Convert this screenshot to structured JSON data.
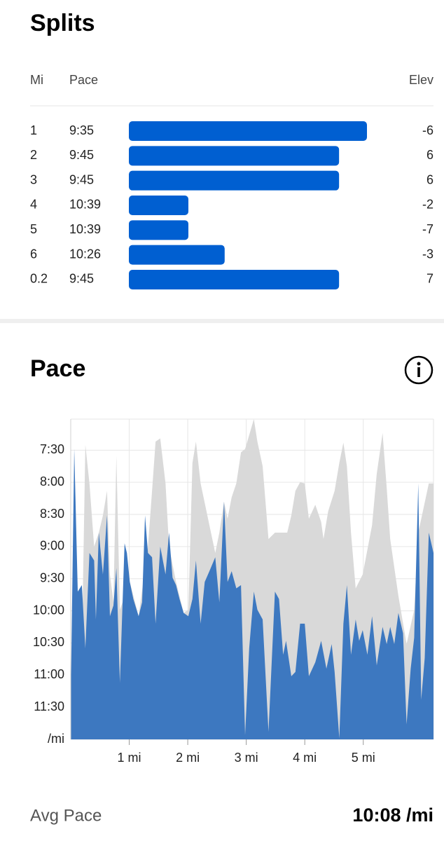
{
  "splits": {
    "title": "Splits",
    "headers": [
      "Mi",
      "Pace",
      "Elev"
    ],
    "rows": [
      {
        "mi": "1",
        "pace": "9:35",
        "elev": -6
      },
      {
        "mi": "2",
        "pace": "9:45",
        "elev": 6
      },
      {
        "mi": "3",
        "pace": "9:45",
        "elev": 6
      },
      {
        "mi": "4",
        "pace": "10:39",
        "elev": -2
      },
      {
        "mi": "5",
        "pace": "10:39",
        "elev": -7
      },
      {
        "mi": "6",
        "pace": "10:26",
        "elev": -3
      },
      {
        "mi": "0.2",
        "pace": "9:45",
        "elev": 7
      }
    ],
    "bar_color": "#005fd1"
  },
  "pace_section": {
    "title": "Pace"
  },
  "chart_data": {
    "type": "area",
    "xlim": [
      0,
      6.2
    ],
    "xticks": [
      {
        "value": 1,
        "label": "1 mi"
      },
      {
        "value": 2,
        "label": "2 mi"
      },
      {
        "value": 3,
        "label": "3 mi"
      },
      {
        "value": 4,
        "label": "4 mi"
      },
      {
        "value": 5,
        "label": "5 mi"
      }
    ],
    "ylim": [
      720,
      421
    ],
    "yticks": [
      {
        "value": 450,
        "label": "7:30"
      },
      {
        "value": 480,
        "label": "8:00"
      },
      {
        "value": 510,
        "label": "8:30"
      },
      {
        "value": 540,
        "label": "9:00"
      },
      {
        "value": 570,
        "label": "9:30"
      },
      {
        "value": 600,
        "label": "10:00"
      },
      {
        "value": 630,
        "label": "10:30"
      },
      {
        "value": 660,
        "label": "11:00"
      },
      {
        "value": 690,
        "label": "11:30"
      },
      {
        "value": 720,
        "label": "/mi"
      }
    ],
    "grid": true,
    "series": [
      {
        "color": "#d9d9d9",
        "x": [
          0.06,
          0.13,
          0.2,
          0.25,
          0.32,
          0.4,
          0.48,
          0.55,
          0.62,
          0.67,
          0.73,
          0.78,
          0.84,
          1.01,
          1.16,
          1.32,
          1.39,
          1.45,
          1.53,
          1.62,
          1.68,
          1.8,
          1.93,
          2.01,
          2.08,
          2.14,
          2.22,
          2.37,
          2.47,
          2.54,
          2.62,
          2.68,
          2.75,
          2.83,
          2.91,
          2.98,
          3.13,
          3.19,
          3.28,
          3.38,
          3.49,
          3.7,
          3.77,
          3.84,
          3.92,
          4.0,
          4.07,
          4.18,
          4.28,
          4.32,
          4.4,
          4.51,
          4.59,
          4.66,
          4.72,
          4.79,
          4.87,
          4.99,
          5.15,
          5.23,
          5.33,
          5.4,
          5.46,
          5.6,
          5.74,
          5.87,
          5.94,
          6.12,
          6.2
        ],
        "values": [
          449,
          618,
          605,
          445,
          481,
          540,
          527,
          511,
          488,
          566,
          592,
          455,
          599,
          573,
          605,
          540,
          488,
          442,
          439,
          481,
          540,
          573,
          602,
          599,
          462,
          442,
          481,
          520,
          546,
          527,
          498,
          514,
          494,
          481,
          452,
          449,
          421,
          442,
          465,
          533,
          527,
          527,
          511,
          488,
          480,
          481,
          514,
          501,
          517,
          533,
          507,
          488,
          462,
          443,
          465,
          527,
          579,
          566,
          520,
          472,
          434,
          485,
          533,
          586,
          631,
          599,
          527,
          481,
          481
        ]
      },
      {
        "color": "#3d78c0",
        "x": [
          0.0,
          0.06,
          0.12,
          0.19,
          0.25,
          0.32,
          0.4,
          0.43,
          0.48,
          0.55,
          0.62,
          0.67,
          0.73,
          0.78,
          0.84,
          0.92,
          0.96,
          1.01,
          1.07,
          1.16,
          1.22,
          1.27,
          1.32,
          1.39,
          1.45,
          1.53,
          1.62,
          1.68,
          1.74,
          1.8,
          1.86,
          1.93,
          2.01,
          2.08,
          2.14,
          2.22,
          2.29,
          2.37,
          2.47,
          2.54,
          2.62,
          2.68,
          2.75,
          2.83,
          2.91,
          2.98,
          3.05,
          3.13,
          3.19,
          3.28,
          3.38,
          3.49,
          3.56,
          3.63,
          3.68,
          3.77,
          3.84,
          3.92,
          4.0,
          4.07,
          4.18,
          4.28,
          4.37,
          4.46,
          4.51,
          4.59,
          4.66,
          4.72,
          4.79,
          4.87,
          4.93,
          4.99,
          5.07,
          5.15,
          5.23,
          5.33,
          5.4,
          5.46,
          5.53,
          5.6,
          5.68,
          5.74,
          5.81,
          5.87,
          5.94,
          5.99,
          6.05,
          6.12,
          6.2
        ],
        "values": [
          683,
          449,
          582,
          576,
          635,
          546,
          553,
          608,
          527,
          566,
          511,
          605,
          595,
          560,
          667,
          537,
          546,
          573,
          589,
          605,
          592,
          511,
          546,
          550,
          612,
          540,
          566,
          527,
          569,
          576,
          589,
          602,
          605,
          589,
          553,
          612,
          573,
          563,
          550,
          592,
          498,
          573,
          563,
          579,
          576,
          716,
          635,
          582,
          599,
          608,
          713,
          582,
          589,
          641,
          628,
          661,
          657,
          612,
          612,
          661,
          648,
          628,
          654,
          631,
          657,
          719,
          612,
          576,
          641,
          608,
          628,
          618,
          641,
          605,
          651,
          615,
          631,
          615,
          631,
          602,
          621,
          706,
          654,
          625,
          481,
          683,
          644,
          527,
          546
        ]
      }
    ]
  },
  "summary": {
    "label": "Avg Pace",
    "value": "10:08 /mi"
  }
}
